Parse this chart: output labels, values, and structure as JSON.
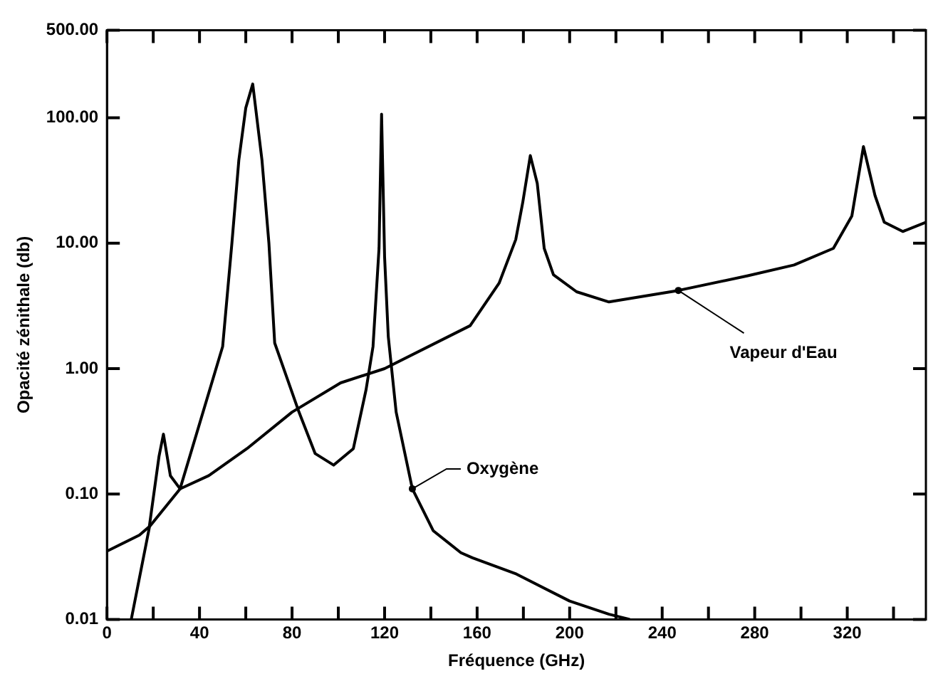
{
  "chart_data": {
    "type": "line",
    "xlabel": "Fréquence (GHz)",
    "ylabel": "Opacité zénithale (db)",
    "log": "y",
    "marker": "none",
    "line_style": "solid",
    "legend": false,
    "xlim": [
      0,
      354
    ],
    "ylim": [
      0.01,
      500
    ],
    "xticks": [
      0,
      {
        "value": 20,
        "label": null
      },
      40,
      {
        "value": 60,
        "label": null
      },
      80,
      {
        "value": 100,
        "label": null
      },
      120,
      {
        "value": 140,
        "label": null
      },
      160,
      {
        "value": 180,
        "label": null
      },
      200,
      {
        "value": 220,
        "label": null
      },
      240,
      {
        "value": 260,
        "label": null
      },
      280,
      {
        "value": 300,
        "label": null
      },
      320,
      {
        "value": 340,
        "label": null
      }
    ],
    "yticks": [
      {
        "value": 0.01,
        "label": "0.01"
      },
      {
        "value": 0.1,
        "label": "0.10"
      },
      {
        "value": 1,
        "label": "1.00"
      },
      {
        "value": 10,
        "label": "10.00"
      },
      {
        "value": 100,
        "label": "100.00"
      },
      {
        "value": 500,
        "label": "500.00"
      }
    ],
    "series": [
      {
        "color": "#000000",
        "x": [
          10.5,
          18.4,
          31.6,
          50,
          54,
          57,
          60,
          63,
          67,
          70,
          72.5,
          83,
          90,
          98,
          106.5,
          112,
          115,
          117.6,
          118.7,
          120,
          121.6,
          125,
          132,
          141,
          153,
          158,
          177,
          200,
          217,
          226
        ],
        "values": [
          0.01,
          0.055,
          0.11,
          1.5,
          10,
          46,
          120,
          186,
          46,
          10,
          1.6,
          0.45,
          0.21,
          0.17,
          0.23,
          0.68,
          1.5,
          9.1,
          107,
          7.8,
          1.8,
          0.45,
          0.11,
          0.051,
          0.034,
          0.031,
          0.023,
          0.014,
          0.011,
          0.01
        ]
      },
      {
        "color": "#000000",
        "x": [
          0,
          14,
          18.3,
          22.5,
          24.4,
          27.4,
          31.6,
          44,
          60.5,
          80,
          101,
          120,
          157,
          169.5,
          176.7,
          179.7,
          183,
          186,
          189,
          193,
          203,
          217,
          247,
          277,
          297,
          314,
          322,
          327,
          332,
          336,
          344,
          354
        ],
        "values": [
          0.035,
          0.047,
          0.055,
          0.2,
          0.3,
          0.14,
          0.11,
          0.14,
          0.23,
          0.45,
          0.77,
          1,
          2.2,
          4.8,
          10.7,
          21,
          50,
          30,
          9.1,
          5.6,
          4.1,
          3.4,
          4.2,
          5.5,
          6.7,
          9.1,
          16.5,
          59,
          24,
          14.7,
          12.4,
          14.7
        ]
      }
    ],
    "annotations": [
      {
        "text": "Oxygène",
        "x": 132,
        "y": 0.11
      },
      {
        "text": "Vapeur d'Eau",
        "x": 247,
        "y": 4.2
      }
    ]
  }
}
